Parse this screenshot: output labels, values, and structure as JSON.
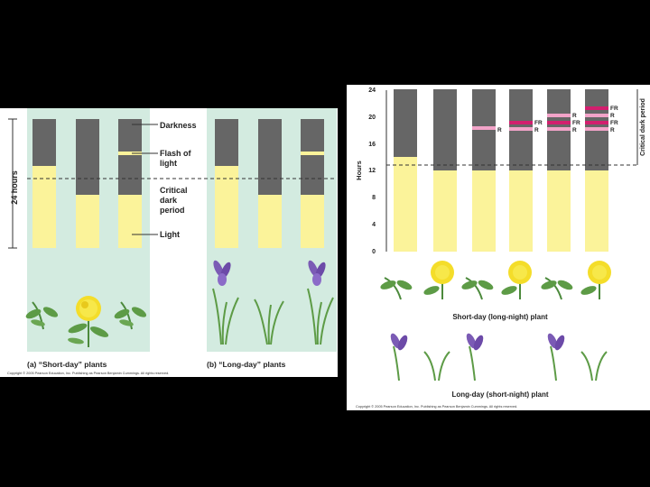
{
  "left_figure": {
    "axis_label": "24 hours",
    "labels": {
      "darkness": "Darkness",
      "flash_line1": "Flash of",
      "flash_line2": "light",
      "critical_line1": "Critical",
      "critical_line2": "dark",
      "critical_line3": "period",
      "light": "Light"
    },
    "caption_a": "(a) “Short-day” plants",
    "caption_b": "(b) “Long-day” plants",
    "copyright": "Copyright © 2005 Pearson Education, Inc. Publishing as Pearson Benjamin Cummings. All rights reserved."
  },
  "right_figure": {
    "y_axis_label": "Hours",
    "y_ticks": [
      "0",
      "4",
      "8",
      "12",
      "16",
      "20",
      "24"
    ],
    "critical_label": "Critical dark period",
    "flash_labels": {
      "col2": [
        "R"
      ],
      "col3": [
        "FR",
        "R"
      ],
      "col4": [
        "R",
        "FR",
        "R"
      ],
      "col5": [
        "FR",
        "R",
        "FR",
        "R"
      ]
    },
    "short_day_label": "Short-day (long-night) plant",
    "long_day_label": "Long-day (short-night) plant",
    "copyright": "Copyright © 2005 Pearson Education, Inc. Publishing as Pearson Benjamin Cummings. All rights reserved."
  },
  "colors": {
    "darkness": "#666666",
    "light": "#fbf39a",
    "short_day_bg": "#d3ebe0",
    "flash_red": "#d21f6e",
    "flash_pink": "#f2a3c8"
  }
}
